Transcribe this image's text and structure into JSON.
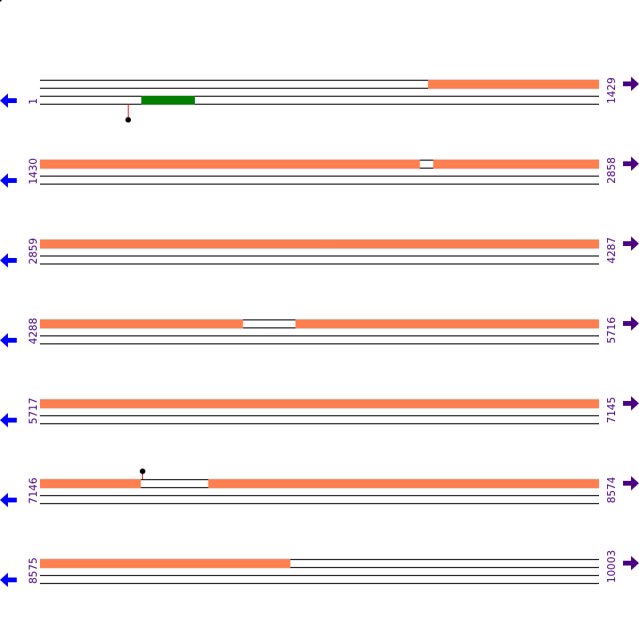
{
  "map": {
    "bp_per_row": 1429,
    "colors": {
      "aligned_region": "#ff7f50",
      "feature": "#008000",
      "label": "#4b0082",
      "reverse_arrow": "#0000ff",
      "forward_arrow": "#4b0082",
      "marker_stem": "#ff0000",
      "marker_head": "#000000"
    },
    "rows": [
      {
        "start": 1,
        "end": 1429,
        "start_label": "1",
        "end_label": "1429",
        "top_segments": [
          [
            993,
            1429
          ]
        ],
        "bottom_features": [
          [
            260,
            397
          ]
        ],
        "markers": [
          {
            "strand": "bottom",
            "pos": 225
          }
        ]
      },
      {
        "start": 1430,
        "end": 2858,
        "start_label": "1430",
        "end_label": "2858",
        "top_segments": [
          [
            1430,
            2400
          ],
          [
            2435,
            2858
          ]
        ],
        "bottom_features": [],
        "markers": []
      },
      {
        "start": 2859,
        "end": 4287,
        "start_label": "2859",
        "end_label": "4287",
        "top_segments": [
          [
            2859,
            3594
          ],
          [
            3595,
            4287
          ]
        ],
        "bottom_features": [],
        "markers": []
      },
      {
        "start": 4288,
        "end": 5716,
        "start_label": "4288",
        "end_label": "5716",
        "top_segments": [
          [
            4288,
            4806
          ],
          [
            4941,
            5716
          ]
        ],
        "bottom_features": [],
        "markers": []
      },
      {
        "start": 5717,
        "end": 7145,
        "start_label": "5717",
        "end_label": "7145",
        "top_segments": [
          [
            5717,
            7145
          ]
        ],
        "bottom_features": [],
        "markers": []
      },
      {
        "start": 7146,
        "end": 8574,
        "start_label": "7146",
        "end_label": "8574",
        "top_segments": [
          [
            7146,
            7403
          ],
          [
            7576,
            8574
          ]
        ],
        "bottom_features": [],
        "markers": [
          {
            "strand": "top",
            "pos": 7407
          }
        ]
      },
      {
        "start": 8575,
        "end": 10003,
        "start_label": "8575",
        "end_label": "10003",
        "top_segments": [
          [
            8575,
            9214
          ]
        ],
        "bottom_features": [],
        "markers": []
      }
    ]
  }
}
